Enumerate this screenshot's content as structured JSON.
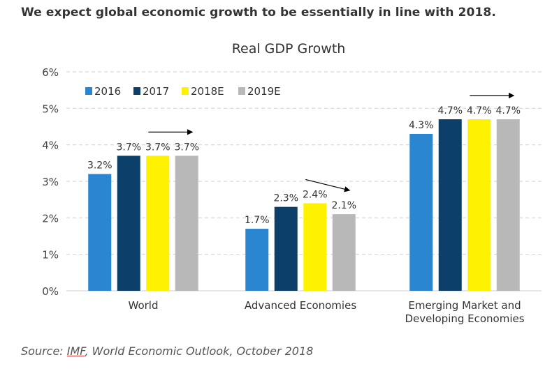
{
  "headline": "We expect global economic growth to be essentially in line with 2018.",
  "source": {
    "prefix": "Source: ",
    "link_text": "IMF",
    "suffix": ", World Economic Outlook, October 2018"
  },
  "chart_data": {
    "type": "bar",
    "title": "Real GDP Growth",
    "xlabel": "",
    "ylabel": "",
    "ylim": [
      0,
      6
    ],
    "yticks": [
      "0%",
      "1%",
      "2%",
      "3%",
      "4%",
      "5%",
      "6%"
    ],
    "grid": true,
    "legend_position": "top-left",
    "categories": [
      [
        "World"
      ],
      [
        "Advanced Economies"
      ],
      [
        "Emerging Market and",
        "Developing Economies"
      ]
    ],
    "series": [
      {
        "name": "2016",
        "color": "#2b86d1",
        "values": [
          3.2,
          1.7,
          4.3
        ],
        "labels": [
          "3.2%",
          "1.7%",
          "4.3%"
        ]
      },
      {
        "name": "2017",
        "color": "#0d3f6b",
        "values": [
          3.7,
          2.3,
          4.7
        ],
        "labels": [
          "3.7%",
          "2.3%",
          "4.7%"
        ]
      },
      {
        "name": "2018E",
        "color": "#fff200",
        "values": [
          3.7,
          2.4,
          4.7
        ],
        "labels": [
          "3.7%",
          "2.4%",
          "4.7%"
        ]
      },
      {
        "name": "2019E",
        "color": "#b8b8b8",
        "values": [
          3.7,
          2.1,
          4.7
        ],
        "labels": [
          "3.7%",
          "2.1%",
          "4.7%"
        ]
      }
    ],
    "annotations": [
      {
        "type": "arrow",
        "group": 0,
        "direction": "flat",
        "from": 3.7,
        "to": 3.7
      },
      {
        "type": "arrow",
        "group": 1,
        "direction": "down",
        "from": 2.4,
        "to": 2.1
      },
      {
        "type": "arrow",
        "group": 2,
        "direction": "flat",
        "from": 4.7,
        "to": 4.7
      }
    ]
  }
}
